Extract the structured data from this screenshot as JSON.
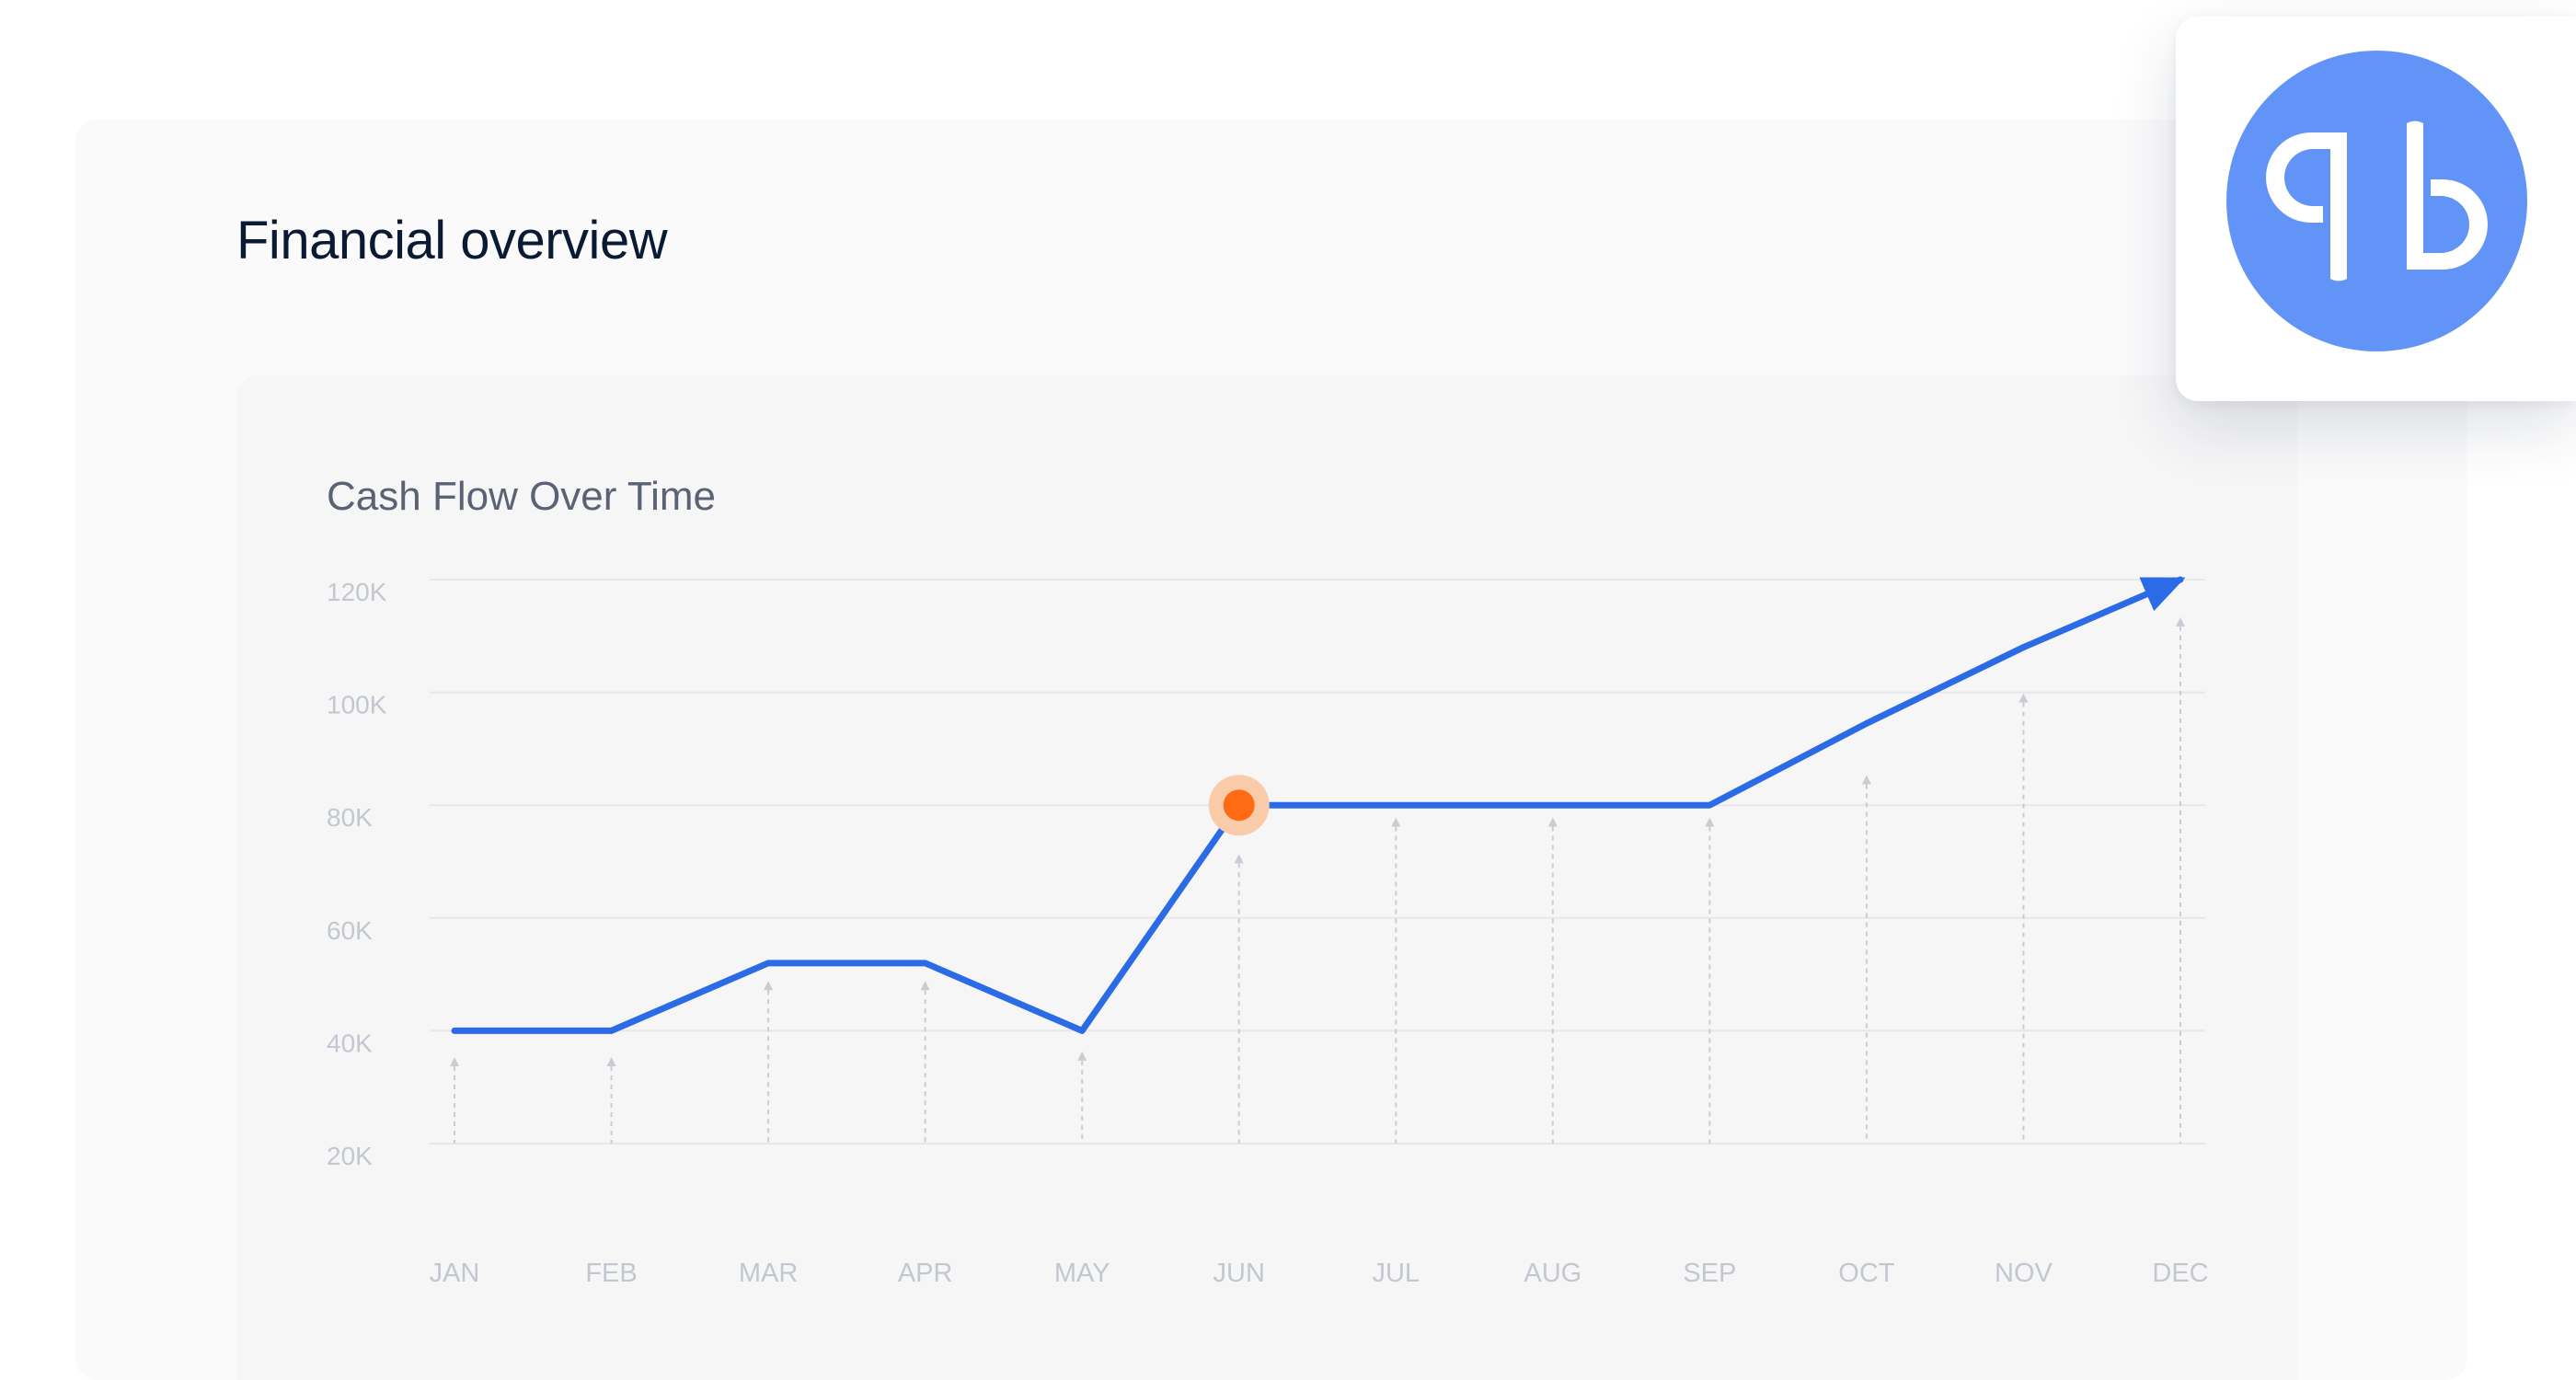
{
  "page": {
    "title": "Financial overview"
  },
  "logo": {
    "icon": "quickbooks-logo-icon",
    "circle_color": "#6294f7",
    "mark_color": "#ffffff"
  },
  "colors": {
    "line": "#2b6be6",
    "highlight": "#ff6a13",
    "highlight_halo": "#f9cba9",
    "grid": "#e6e7eb",
    "tick_text": "#c3c7d0",
    "title_text": "#5a6274",
    "projection": "#c9ccd3"
  },
  "chart_data": {
    "type": "line",
    "title": "Cash Flow Over Time",
    "xlabel": "",
    "ylabel": "",
    "categories": [
      "JAN",
      "FEB",
      "MAR",
      "APR",
      "MAY",
      "JUN",
      "JUL",
      "AUG",
      "SEP",
      "OCT",
      "NOV",
      "DEC"
    ],
    "yticks": [
      20000,
      40000,
      60000,
      80000,
      100000,
      120000
    ],
    "ytick_labels": [
      "20K",
      "40K",
      "60K",
      "80K",
      "100K",
      "120K"
    ],
    "ylim": [
      20000,
      120000
    ],
    "grid": true,
    "legend": "none",
    "series": [
      {
        "values": [
          40000,
          40000,
          52000,
          52000,
          40000,
          80000,
          80000,
          80000,
          80000,
          94500,
          108000,
          120000
        ]
      }
    ],
    "bar_guides": [
      35000,
      35000,
      48500,
      48500,
      36000,
      71000,
      77500,
      77500,
      77500,
      85000,
      99500,
      113000
    ],
    "highlight_point": {
      "category": "JUN",
      "value": 80000
    },
    "end_arrow": true
  }
}
